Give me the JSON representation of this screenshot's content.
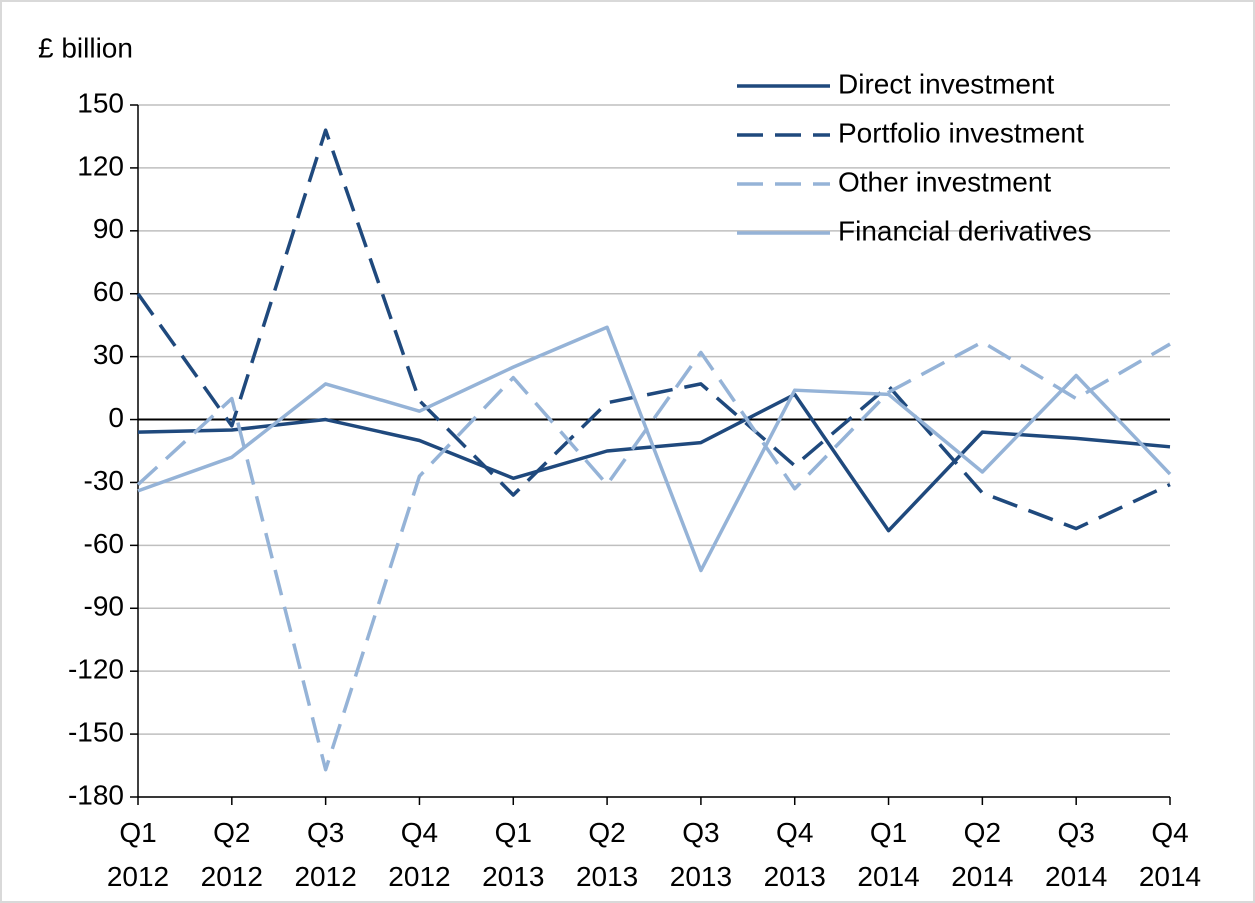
{
  "chart_data": {
    "type": "line",
    "y_label": "£ billion",
    "categories": [
      [
        "Q1",
        "2012"
      ],
      [
        "Q2",
        "2012"
      ],
      [
        "Q3",
        "2012"
      ],
      [
        "Q4",
        "2012"
      ],
      [
        "Q1",
        "2013"
      ],
      [
        "Q2",
        "2013"
      ],
      [
        "Q3",
        "2013"
      ],
      [
        "Q4",
        "2013"
      ],
      [
        "Q1",
        "2014"
      ],
      [
        "Q2",
        "2014"
      ],
      [
        "Q3",
        "2014"
      ],
      [
        "Q4",
        "2014"
      ]
    ],
    "series": [
      {
        "name": "Direct investment",
        "color": "#1f497d",
        "dashed": false,
        "values": [
          -6,
          -5,
          0,
          -10,
          -28,
          -15,
          -11,
          12,
          -53,
          -6,
          -9,
          -13
        ]
      },
      {
        "name": "Portfolio investment",
        "color": "#1f497d",
        "dashed": true,
        "values": [
          60,
          -3,
          138,
          9,
          -36,
          8,
          17,
          -22,
          16,
          -35,
          -52,
          -31
        ]
      },
      {
        "name": "Other investment",
        "color": "#95b3d7",
        "dashed": true,
        "values": [
          -31,
          10,
          -167,
          -27,
          20,
          -31,
          32,
          -33,
          13,
          37,
          10,
          36
        ]
      },
      {
        "name": "Financial derivatives",
        "color": "#95b3d7",
        "dashed": false,
        "values": [
          -34,
          -18,
          17,
          4,
          25,
          44,
          -72,
          14,
          12,
          -25,
          21,
          -26
        ]
      }
    ],
    "ylim": [
      -180,
      150
    ],
    "yticks": [
      -180,
      -150,
      -120,
      -90,
      -60,
      -30,
      0,
      30,
      60,
      90,
      120,
      150
    ],
    "grid": true
  }
}
